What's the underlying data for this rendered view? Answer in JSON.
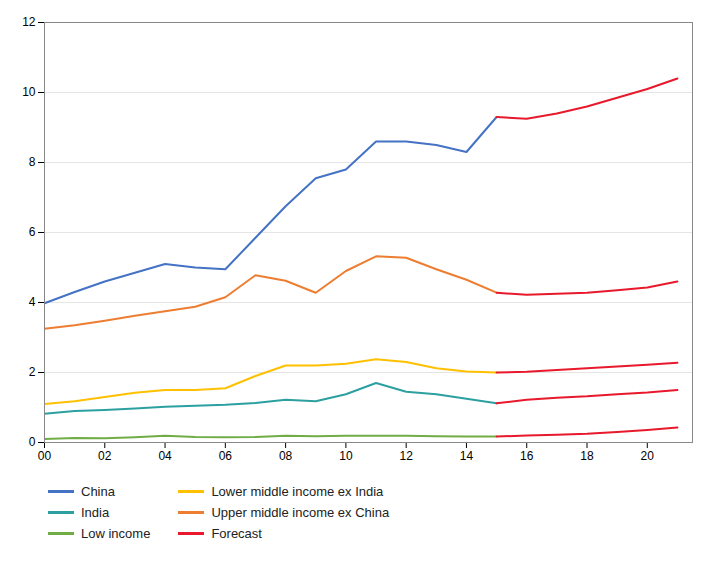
{
  "chart_data": {
    "type": "line",
    "x": [
      2000,
      2001,
      2002,
      2003,
      2004,
      2005,
      2006,
      2007,
      2008,
      2009,
      2010,
      2011,
      2012,
      2013,
      2014,
      2015,
      2016,
      2017,
      2018,
      2019,
      2020,
      2021
    ],
    "series": [
      {
        "name": "China",
        "color": "#4472c4",
        "values": [
          3.98,
          4.3,
          4.6,
          4.85,
          5.1,
          5.0,
          4.95,
          5.85,
          6.75,
          7.55,
          7.8,
          8.6,
          8.6,
          8.5,
          8.3,
          9.3,
          null,
          null,
          null,
          null,
          null,
          null
        ]
      },
      {
        "name": "India",
        "color": "#2ca0a0",
        "values": [
          0.82,
          0.9,
          0.93,
          0.97,
          1.02,
          1.05,
          1.08,
          1.13,
          1.22,
          1.18,
          1.38,
          1.7,
          1.45,
          1.38,
          1.25,
          1.12,
          null,
          null,
          null,
          null,
          null,
          null
        ]
      },
      {
        "name": "Low income",
        "color": "#70ad47",
        "values": [
          0.1,
          0.13,
          0.12,
          0.15,
          0.19,
          0.16,
          0.15,
          0.16,
          0.19,
          0.18,
          0.19,
          0.19,
          0.19,
          0.18,
          0.17,
          0.17,
          null,
          null,
          null,
          null,
          null,
          null
        ]
      },
      {
        "name": "Lower middle income ex India",
        "color": "#ffc000",
        "values": [
          1.1,
          1.18,
          1.3,
          1.42,
          1.5,
          1.5,
          1.55,
          1.9,
          2.2,
          2.2,
          2.25,
          2.38,
          2.3,
          2.12,
          2.03,
          2.0,
          null,
          null,
          null,
          null,
          null,
          null
        ]
      },
      {
        "name": "Upper middle income ex China",
        "color": "#ed7d31",
        "values": [
          3.25,
          3.35,
          3.48,
          3.62,
          3.75,
          3.88,
          4.15,
          4.78,
          4.62,
          4.28,
          4.9,
          5.32,
          5.28,
          4.95,
          4.65,
          4.28,
          null,
          null,
          null,
          null,
          null,
          null
        ]
      },
      {
        "name": "Forecast",
        "color": "#e8192c",
        "values": [
          null,
          null,
          null,
          null,
          null,
          null,
          null,
          null,
          null,
          null,
          null,
          null,
          null,
          null,
          null,
          9.3,
          9.25,
          9.4,
          9.6,
          9.85,
          10.1,
          10.4
        ]
      },
      {
        "name": "Forecast",
        "color": "#e8192c",
        "values": [
          null,
          null,
          null,
          null,
          null,
          null,
          null,
          null,
          null,
          null,
          null,
          null,
          null,
          null,
          null,
          1.12,
          1.22,
          1.28,
          1.32,
          1.38,
          1.43,
          1.5
        ]
      },
      {
        "name": "Forecast",
        "color": "#e8192c",
        "values": [
          null,
          null,
          null,
          null,
          null,
          null,
          null,
          null,
          null,
          null,
          null,
          null,
          null,
          null,
          null,
          0.17,
          0.2,
          0.22,
          0.25,
          0.3,
          0.36,
          0.43
        ]
      },
      {
        "name": "Forecast",
        "color": "#e8192c",
        "values": [
          null,
          null,
          null,
          null,
          null,
          null,
          null,
          null,
          null,
          null,
          null,
          null,
          null,
          null,
          null,
          2.0,
          2.02,
          2.07,
          2.12,
          2.17,
          2.22,
          2.28
        ]
      },
      {
        "name": "Forecast",
        "color": "#e8192c",
        "values": [
          null,
          null,
          null,
          null,
          null,
          null,
          null,
          null,
          null,
          null,
          null,
          null,
          null,
          null,
          null,
          4.28,
          4.22,
          4.25,
          4.28,
          4.35,
          4.43,
          4.6
        ]
      }
    ],
    "xlim": [
      2000,
      2021.5
    ],
    "xticks": [
      {
        "value": 2000,
        "label": "00"
      },
      {
        "value": 2002,
        "label": "02"
      },
      {
        "value": 2004,
        "label": "04"
      },
      {
        "value": 2006,
        "label": "06"
      },
      {
        "value": 2008,
        "label": "08"
      },
      {
        "value": 2010,
        "label": "10"
      },
      {
        "value": 2012,
        "label": "12"
      },
      {
        "value": 2014,
        "label": "14"
      },
      {
        "value": 2016,
        "label": "16"
      },
      {
        "value": 2018,
        "label": "18"
      },
      {
        "value": 2020,
        "label": "20"
      }
    ],
    "ylim": [
      0,
      12
    ],
    "yticks": [
      0,
      2,
      4,
      6,
      8,
      10,
      12
    ],
    "grid": "y",
    "legend": "bottom"
  }
}
